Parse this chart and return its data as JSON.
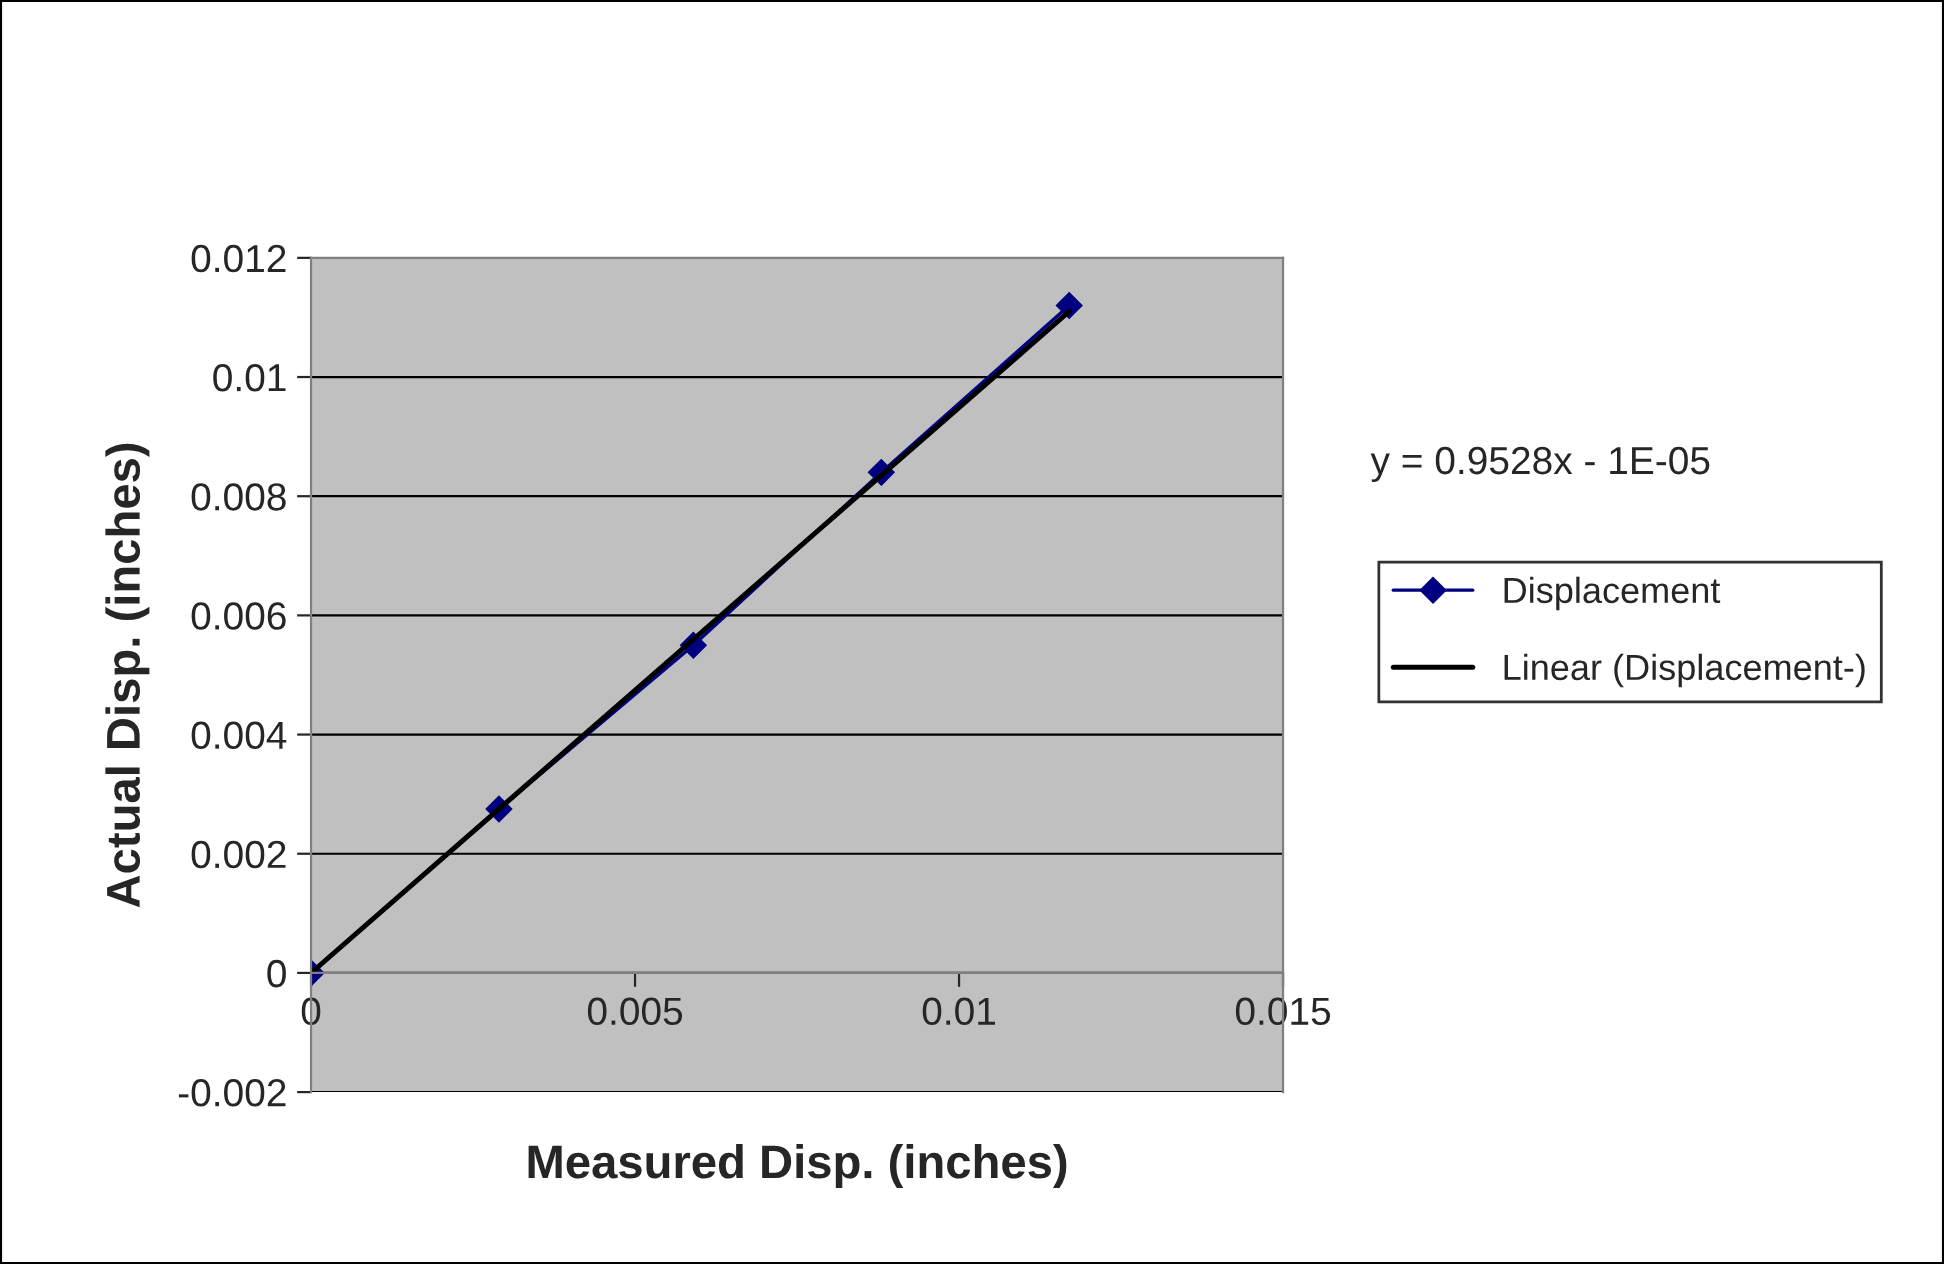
{
  "chart_data": {
    "type": "line",
    "xlabel": "Measured Disp. (inches)",
    "ylabel": "Actual Disp. (inches)",
    "x": [
      0,
      0.0029,
      0.0059,
      0.0088,
      0.0117
    ],
    "series": [
      {
        "name": "Displacement",
        "color": "#000080",
        "marker": "diamond",
        "values": [
          0,
          0.00275,
          0.0055,
          0.0084,
          0.0112
        ]
      },
      {
        "name": "Linear (Displacement-)",
        "type": "line",
        "color": "#000000",
        "marker": "none",
        "x": [
          0,
          0.0117
        ],
        "values": [
          0,
          0.0111
        ]
      }
    ],
    "annotations": [
      "y = 0.9528x - 1E-05"
    ],
    "xlim": [
      0,
      0.015
    ],
    "xticks": [
      0,
      0.005,
      0.01,
      0.015
    ],
    "ylim": [
      -0.002,
      0.012
    ],
    "yticks": [
      -0.002,
      0,
      0.002,
      0.004,
      0.006,
      0.008,
      0.01,
      0.012
    ],
    "grid": "y",
    "legend": "right"
  }
}
